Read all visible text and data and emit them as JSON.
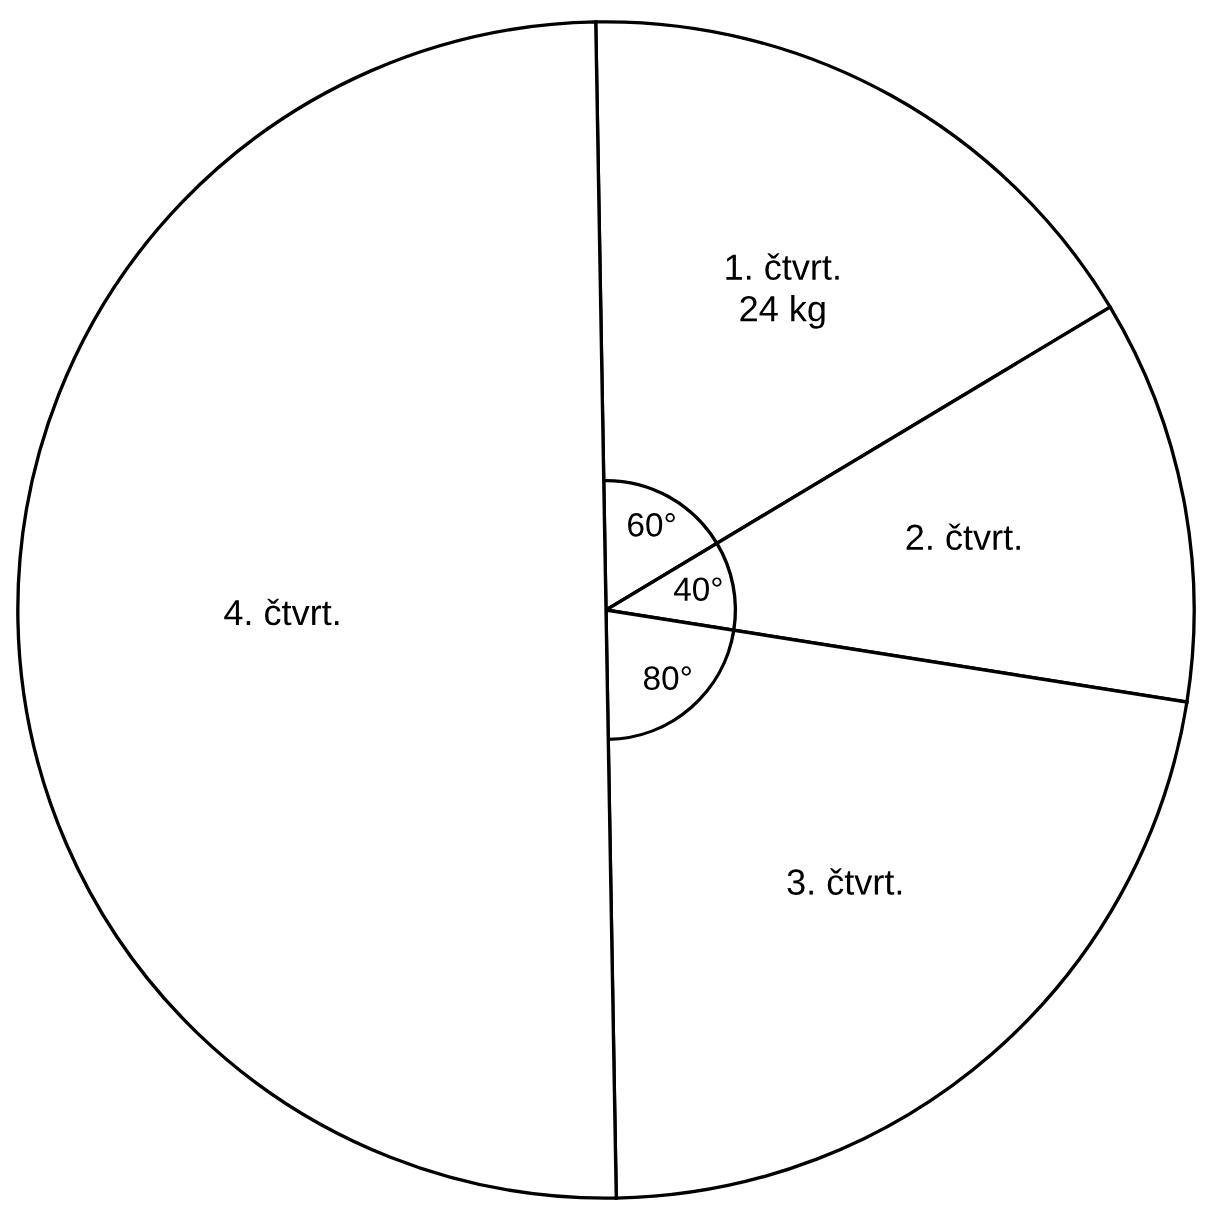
{
  "chart_data": {
    "type": "pie",
    "categories": [
      "1. čtvrt.",
      "2. čtvrt.",
      "3. čtvrt.",
      "4. čtvrt."
    ],
    "values": [
      60,
      40,
      80,
      180
    ],
    "colors": [
      "#ffffff",
      "#ffffff",
      "#ffffff",
      "#ffffff"
    ],
    "value_labels": [
      "60°",
      "40°",
      "80°",
      null
    ],
    "annotations": [
      {
        "text": "24 kg",
        "x": "1. čtvrt."
      }
    ],
    "legend": false
  }
}
